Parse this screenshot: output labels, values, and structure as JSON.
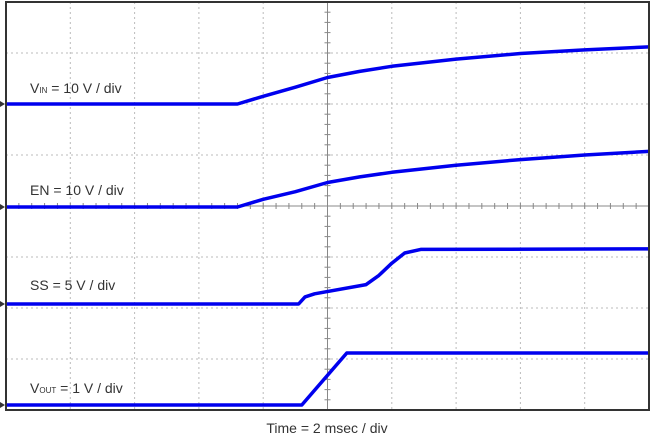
{
  "chart_data": {
    "type": "line",
    "title": "",
    "xlabel": "Time = 2 msec / div",
    "ylabel": "",
    "x_unit": "ms",
    "xlim": [
      0,
      20
    ],
    "divisions": {
      "horizontal": 10,
      "vertical": 8
    },
    "grid": true,
    "trace_color": "#0000ee",
    "series": [
      {
        "name": "VIN",
        "label_main": "V",
        "label_sub": "IN",
        "label_rest": " = 10 V / div",
        "volts_per_div": 10,
        "points": [
          [
            0,
            0
          ],
          [
            7.2,
            0
          ],
          [
            8,
            1.5
          ],
          [
            9,
            3.3
          ],
          [
            10,
            5.2
          ],
          [
            11,
            6.4
          ],
          [
            12,
            7.4
          ],
          [
            14,
            8.8
          ],
          [
            16,
            9.9
          ],
          [
            18,
            10.6
          ],
          [
            20,
            11.2
          ]
        ]
      },
      {
        "name": "EN",
        "label_main": "EN = 10 V / div",
        "label_sub": "",
        "label_rest": "",
        "volts_per_div": 10,
        "points": [
          [
            0,
            0
          ],
          [
            7.2,
            0
          ],
          [
            8,
            1.5
          ],
          [
            9,
            3.0
          ],
          [
            10,
            4.8
          ],
          [
            11,
            5.9
          ],
          [
            12,
            6.8
          ],
          [
            14,
            8.2
          ],
          [
            16,
            9.3
          ],
          [
            18,
            10.2
          ],
          [
            20,
            10.9
          ]
        ]
      },
      {
        "name": "SS",
        "label_main": "SS = 5 V / div",
        "label_sub": "",
        "label_rest": "",
        "volts_per_div": 5,
        "points": [
          [
            0,
            0
          ],
          [
            9.1,
            0
          ],
          [
            9.3,
            0.7
          ],
          [
            9.6,
            1.0
          ],
          [
            11.2,
            1.9
          ],
          [
            11.6,
            2.8
          ],
          [
            12,
            4.0
          ],
          [
            12.4,
            5.0
          ],
          [
            12.9,
            5.35
          ],
          [
            20,
            5.4
          ]
        ]
      },
      {
        "name": "VOUT",
        "label_main": "V",
        "label_sub": "OUT",
        "label_rest": " = 1 V / div",
        "volts_per_div": 1,
        "points": [
          [
            0,
            0
          ],
          [
            9.2,
            0
          ],
          [
            10.6,
            1.02
          ],
          [
            20,
            1.02
          ]
        ]
      }
    ]
  }
}
